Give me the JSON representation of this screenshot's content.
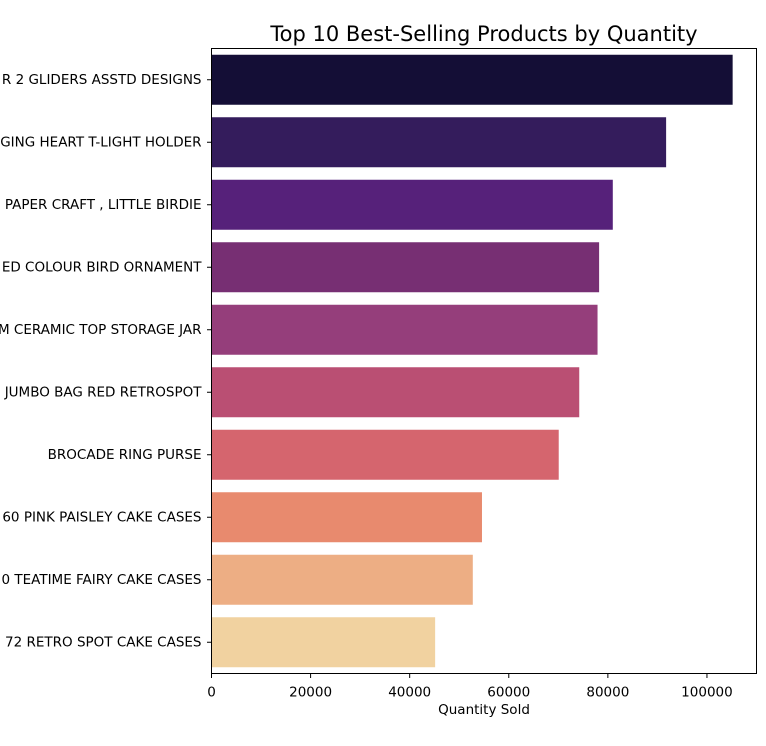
{
  "chart_data": {
    "type": "bar",
    "orientation": "horizontal",
    "title": "Top 10 Best-Selling Products by Quantity",
    "xlabel": "Quantity Sold",
    "ylabel": "",
    "xlim": [
      0,
      110000
    ],
    "xticks": [
      0,
      20000,
      40000,
      60000,
      80000,
      100000
    ],
    "xtick_labels": [
      "0",
      "20000",
      "40000",
      "60000",
      "80000",
      "100000"
    ],
    "categories": [
      "R 2 GLIDERS ASSTD DESIGNS",
      "GING HEART T-LIGHT HOLDER",
      "PAPER CRAFT , LITTLE BIRDIE",
      "ED COLOUR BIRD ORNAMENT",
      "M CERAMIC TOP STORAGE JAR",
      "JUMBO BAG RED RETROSPOT",
      "BROCADE RING PURSE ",
      "60 PINK PAISLEY CAKE CASES",
      "0 TEATIME FAIRY CAKE CASES",
      "72 RETRO SPOT CAKE CASES"
    ],
    "values": [
      105185,
      91757,
      80995,
      78234,
      77916,
      74224,
      70082,
      54592,
      52738,
      45137
    ],
    "colors": [
      "#140e36",
      "#341c5c",
      "#56217a",
      "#772f73",
      "#953e7b",
      "#ba4f73",
      "#d5656e",
      "#e88a6e",
      "#edae84",
      "#f1d2a0"
    ],
    "grid": false,
    "legend": "none"
  }
}
